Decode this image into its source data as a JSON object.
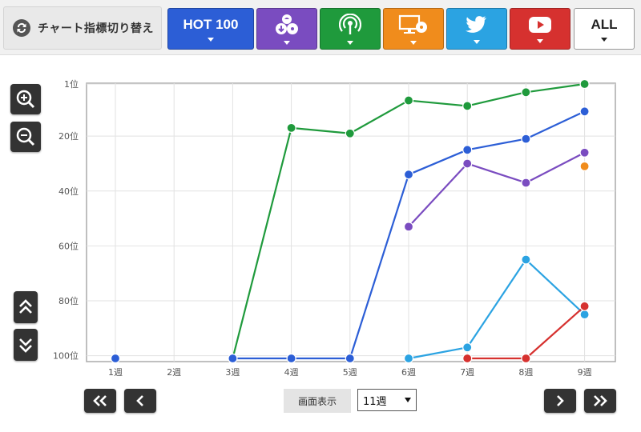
{
  "toolbar": {
    "switch_label": "チャート指標切り替え",
    "tabs": [
      {
        "name": "hot100",
        "label": "HOT 100",
        "icon": "hot100",
        "color": "#2c5ed6"
      },
      {
        "name": "sales",
        "label": "",
        "icon": "cd-download-icon",
        "color": "#7a4cc0"
      },
      {
        "name": "radio",
        "label": "",
        "icon": "radio-broadcast-icon",
        "color": "#1f9a3c"
      },
      {
        "name": "pc-streaming",
        "label": "",
        "icon": "pc-disc-icon",
        "color": "#f08c1c"
      },
      {
        "name": "twitter",
        "label": "",
        "icon": "twitter-icon",
        "color": "#2ba3e2"
      },
      {
        "name": "youtube",
        "label": "",
        "icon": "youtube-icon",
        "color": "#d6312f"
      },
      {
        "name": "all",
        "label": "ALL",
        "icon": "",
        "color": "#ffffff"
      }
    ]
  },
  "controls": {
    "display_label": "画面表示",
    "period_value": "11週"
  },
  "chart_data": {
    "type": "line",
    "categories": [
      "1週",
      "2週",
      "3週",
      "4週",
      "5週",
      "6週",
      "7週",
      "8週",
      "9週"
    ],
    "y_tick_labels": [
      "1位",
      "20位",
      "40位",
      "60位",
      "80位",
      "100位"
    ],
    "y_ticks": [
      1,
      20,
      40,
      60,
      80,
      100
    ],
    "ylim": [
      1,
      101
    ],
    "y_inverted": true,
    "grid": true,
    "series": [
      {
        "color": "#1f9a3c",
        "values": [
          null,
          null,
          101,
          17,
          19,
          7,
          9,
          4,
          1
        ]
      },
      {
        "color": "#2c5ed6",
        "values": [
          101,
          null,
          101,
          101,
          101,
          34,
          25,
          21,
          11
        ]
      },
      {
        "color": "#7a4cc0",
        "values": [
          null,
          null,
          null,
          null,
          null,
          53,
          30,
          37,
          26
        ]
      },
      {
        "color": "#f08c1c",
        "values": [
          null,
          null,
          null,
          null,
          null,
          null,
          null,
          null,
          31
        ]
      },
      {
        "color": "#2ba3e2",
        "values": [
          null,
          null,
          null,
          null,
          null,
          101,
          97,
          65,
          85
        ]
      },
      {
        "color": "#d6312f",
        "values": [
          null,
          null,
          null,
          null,
          null,
          null,
          101,
          101,
          82
        ]
      }
    ]
  }
}
